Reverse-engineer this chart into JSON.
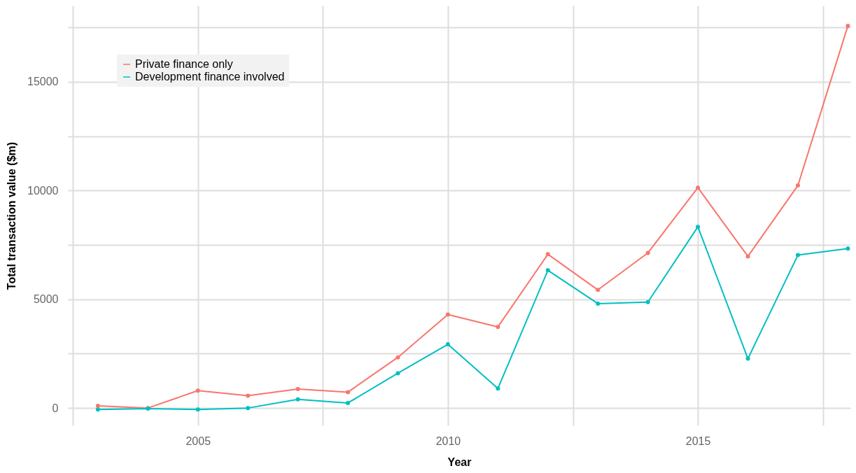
{
  "chart_data": {
    "type": "line",
    "xlabel": "Year",
    "ylabel": "Total transaction value ($m)",
    "x": [
      2003,
      2004,
      2005,
      2006,
      2007,
      2008,
      2009,
      2010,
      2011,
      2012,
      2013,
      2014,
      2015,
      2016,
      2017,
      2018
    ],
    "series": [
      {
        "name": "Private finance only",
        "color": "#f8766d",
        "values": [
          100,
          0,
          800,
          570,
          870,
          730,
          2330,
          4300,
          3730,
          7070,
          5430,
          7130,
          10130,
          6970,
          10230,
          17570
        ]
      },
      {
        "name": "Development finance involved",
        "color": "#00bfc4",
        "values": [
          -70,
          -30,
          -70,
          0,
          400,
          230,
          1600,
          2930,
          900,
          6330,
          4800,
          4870,
          8330,
          2270,
          7030,
          7330
        ]
      }
    ],
    "xlim": [
      2002.4,
      2018.05
    ],
    "xticks": [
      {
        "value": 2002.5,
        "label": null
      },
      2005,
      {
        "value": 2007.5,
        "label": null
      },
      2010,
      {
        "value": 2012.5,
        "label": null
      },
      2015,
      {
        "value": 2017.5,
        "label": null
      }
    ],
    "ylim": [
      -800,
      18500
    ],
    "yticks": [
      0,
      {
        "value": 2500,
        "label": null
      },
      5000,
      {
        "value": 7500,
        "label": null
      },
      10000,
      {
        "value": 12500,
        "label": null
      },
      15000,
      {
        "value": 17500,
        "label": null
      }
    ],
    "grid": true,
    "legend": "top left",
    "marker": "circle",
    "line_style": "solid"
  }
}
